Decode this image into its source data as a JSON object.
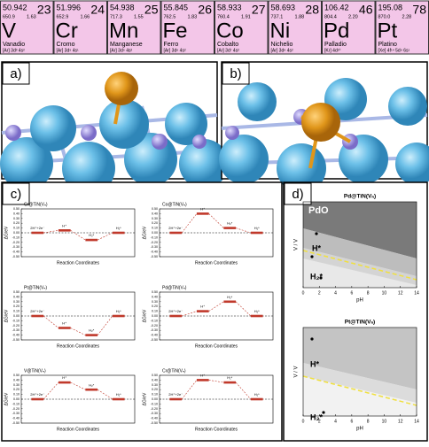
{
  "elements": [
    {
      "mass": "50.942",
      "number": "23",
      "density": "650.9",
      "en": "1.63",
      "symbol": "V",
      "name": "Vanadio",
      "config": "[Ar] 3d³ 4s²"
    },
    {
      "mass": "51.996",
      "number": "24",
      "density": "652.9",
      "en": "1.66",
      "symbol": "Cr",
      "name": "Cromo",
      "config": "[Ar] 3d⁵ 4s¹"
    },
    {
      "mass": "54.938",
      "number": "25",
      "density": "717.3",
      "en": "1.55",
      "symbol": "Mn",
      "name": "Manganese",
      "config": "[Ar] 3d⁵ 4s²"
    },
    {
      "mass": "55.845",
      "number": "26",
      "density": "762.5",
      "en": "1.83",
      "symbol": "Fe",
      "name": "Ferro",
      "config": "[Ar] 3d⁶ 4s²"
    },
    {
      "mass": "58.933",
      "number": "27",
      "density": "760.4",
      "en": "1.91",
      "symbol": "Co",
      "name": "Cobalto",
      "config": "[Ar] 3d⁷ 4s²"
    },
    {
      "mass": "58.693",
      "number": "28",
      "density": "737.1",
      "en": "1.88",
      "symbol": "Ni",
      "name": "Nichelio",
      "config": "[Ar] 3d⁸ 4s²"
    },
    {
      "mass": "106.42",
      "number": "46",
      "density": "804.4",
      "en": "2.20",
      "symbol": "Pd",
      "name": "Palladio",
      "config": "[Kr] 4d¹⁰"
    },
    {
      "mass": "195.08",
      "number": "78",
      "density": "870.0",
      "en": "2.28",
      "symbol": "Pt",
      "name": "Platino",
      "config": "[Xe] 4f¹⁴ 5d⁹ 6s¹"
    }
  ],
  "panel_labels": [
    "a)",
    "b)",
    "c)",
    "d)"
  ],
  "panel_c": {
    "type": "line",
    "xlabel": "Reaction Coordinates",
    "ylabel": "ΔG/eV",
    "ylim": [
      -0.5,
      0.5
    ],
    "yticks": [
      {
        "value": 0.5,
        "label": "0.50"
      },
      {
        "value": 0.4,
        "label": "0.40"
      },
      {
        "value": 0.3,
        "label": "0.30"
      },
      {
        "value": 0.2,
        "label": "0.20"
      },
      {
        "value": 0.1,
        "label": "0.10"
      },
      {
        "value": 0,
        "label": "0.00"
      },
      {
        "value": -0.1,
        "label": "-0.10"
      },
      {
        "value": -0.2,
        "label": "-0.20"
      },
      {
        "value": -0.3,
        "label": "-0.30"
      },
      {
        "value": -0.4,
        "label": "-0.40"
      },
      {
        "value": -0.5,
        "label": "-0.50"
      }
    ],
    "states": [
      "2H⁺+2e⁻",
      "H⁺",
      "H₂*",
      "H₂*"
    ],
    "charts": [
      {
        "title": "Cr@TiN(Vₙ)",
        "values": [
          0,
          0.05,
          -0.15,
          0
        ]
      },
      {
        "title": "Co@TiN(Vₙ)",
        "values": [
          0,
          0.4,
          0.1,
          0
        ]
      },
      {
        "title": "Pt@TiN(Vₙ)",
        "values": [
          0,
          -0.25,
          -0.4,
          0
        ]
      },
      {
        "title": "Pd@TiN(Vₙ)",
        "values": [
          0,
          0.1,
          0.3,
          0
        ]
      },
      {
        "title": "V@TiN(Vₙ)",
        "values": [
          0,
          0.35,
          0.2,
          0
        ]
      },
      {
        "title": "Cr@TiN(Vₙ)",
        "values": [
          0,
          0.4,
          0.35,
          0
        ]
      }
    ]
  },
  "panel_d": {
    "xlabel": "pH",
    "ylabel": "V / V",
    "xlim": [
      0,
      14
    ],
    "xticks": [
      0,
      2,
      4,
      6,
      8,
      10,
      12,
      14
    ],
    "plots": [
      {
        "title": "Pd@TiN(Vₙ)",
        "labels": [
          "PdO",
          "H*",
          "H₂*"
        ]
      },
      {
        "title": "Pt@TiN(Vₙ)",
        "labels": [
          "H*",
          "H₂*"
        ]
      }
    ]
  }
}
